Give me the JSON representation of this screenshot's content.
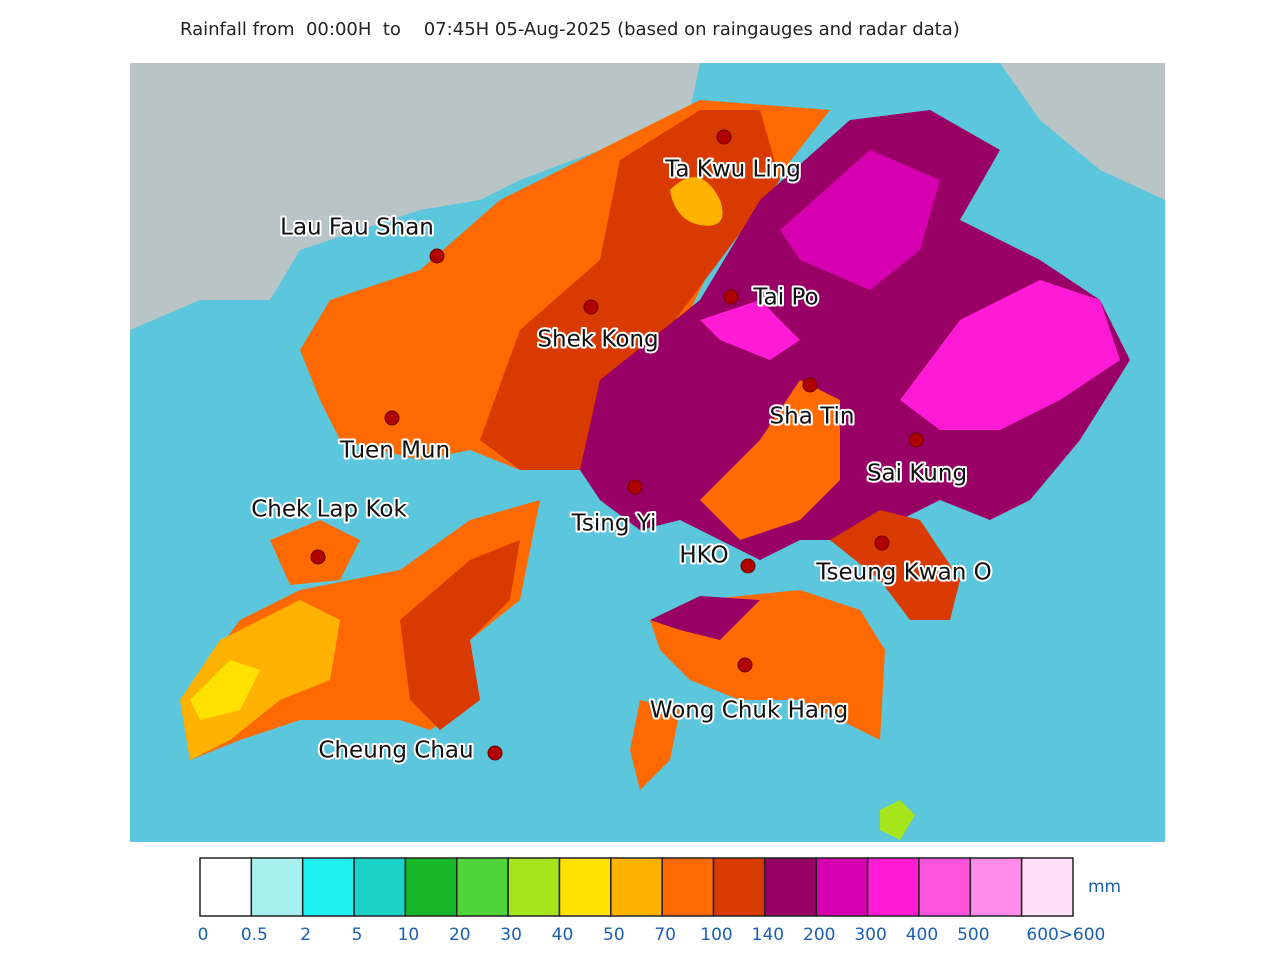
{
  "title": "Rainfall from  00:00H  to    07:45H 05-Aug-2025 (based on raingauges and radar data)",
  "stations": [
    "Ta Kwu Ling",
    "Lau Fau Shan",
    "Tai Po",
    "Shek Kong",
    "Sha Tin",
    "Tuen Mun",
    "Sai Kung",
    "Tsing Yi",
    "Chek Lap Kok",
    "HKO",
    "Tseung Kwan O",
    "Wong Chuk Hang",
    "Cheung Chau"
  ],
  "legend": {
    "unit": "mm",
    "ticks": [
      "0",
      "0.5",
      "2",
      "5",
      "10",
      "20",
      "30",
      "40",
      "50",
      "70",
      "100",
      "140",
      "200",
      "300",
      "400",
      "500",
      "600",
      ">600"
    ],
    "colors": [
      "#ffffff",
      "#a6f0f0",
      "#1ff0f0",
      "#1ad2c8",
      "#16b82a",
      "#4fd43a",
      "#a6e51c",
      "#ffe100",
      "#ffb300",
      "#ff6a00",
      "#d93a00",
      "#990066",
      "#d600b0",
      "#ff1ad6",
      "#ff55dc",
      "#ff8ce8",
      "#ffe0f8"
    ]
  }
}
